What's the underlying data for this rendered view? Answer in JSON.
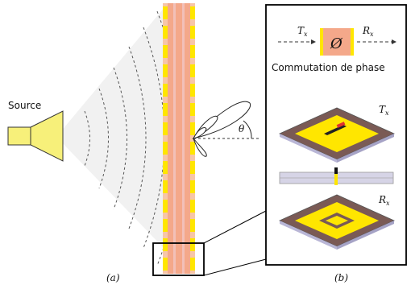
{
  "labels": {
    "source": "Source",
    "tx_top": "T",
    "tx_top_sub": "x",
    "rx_top": "R",
    "rx_top_sub": "x",
    "phase_symbol": "Ø",
    "commutation": "Commutation de phase",
    "tx_cell": "T",
    "tx_cell_sub": "x",
    "rx_cell": "R",
    "rx_cell_sub": "x",
    "theta": "θ",
    "panel_a": "(a)",
    "panel_b": "(b)"
  },
  "colors": {
    "array_fill": "#f4a88a",
    "array_edge": "#f7c09f",
    "patch": "#ffe600",
    "feed_line": "#f0b9b0",
    "horn": "#f7f07a",
    "substrate": "#7a5a55",
    "substrate_side": "#b9b6d6",
    "wave": "#555555"
  }
}
